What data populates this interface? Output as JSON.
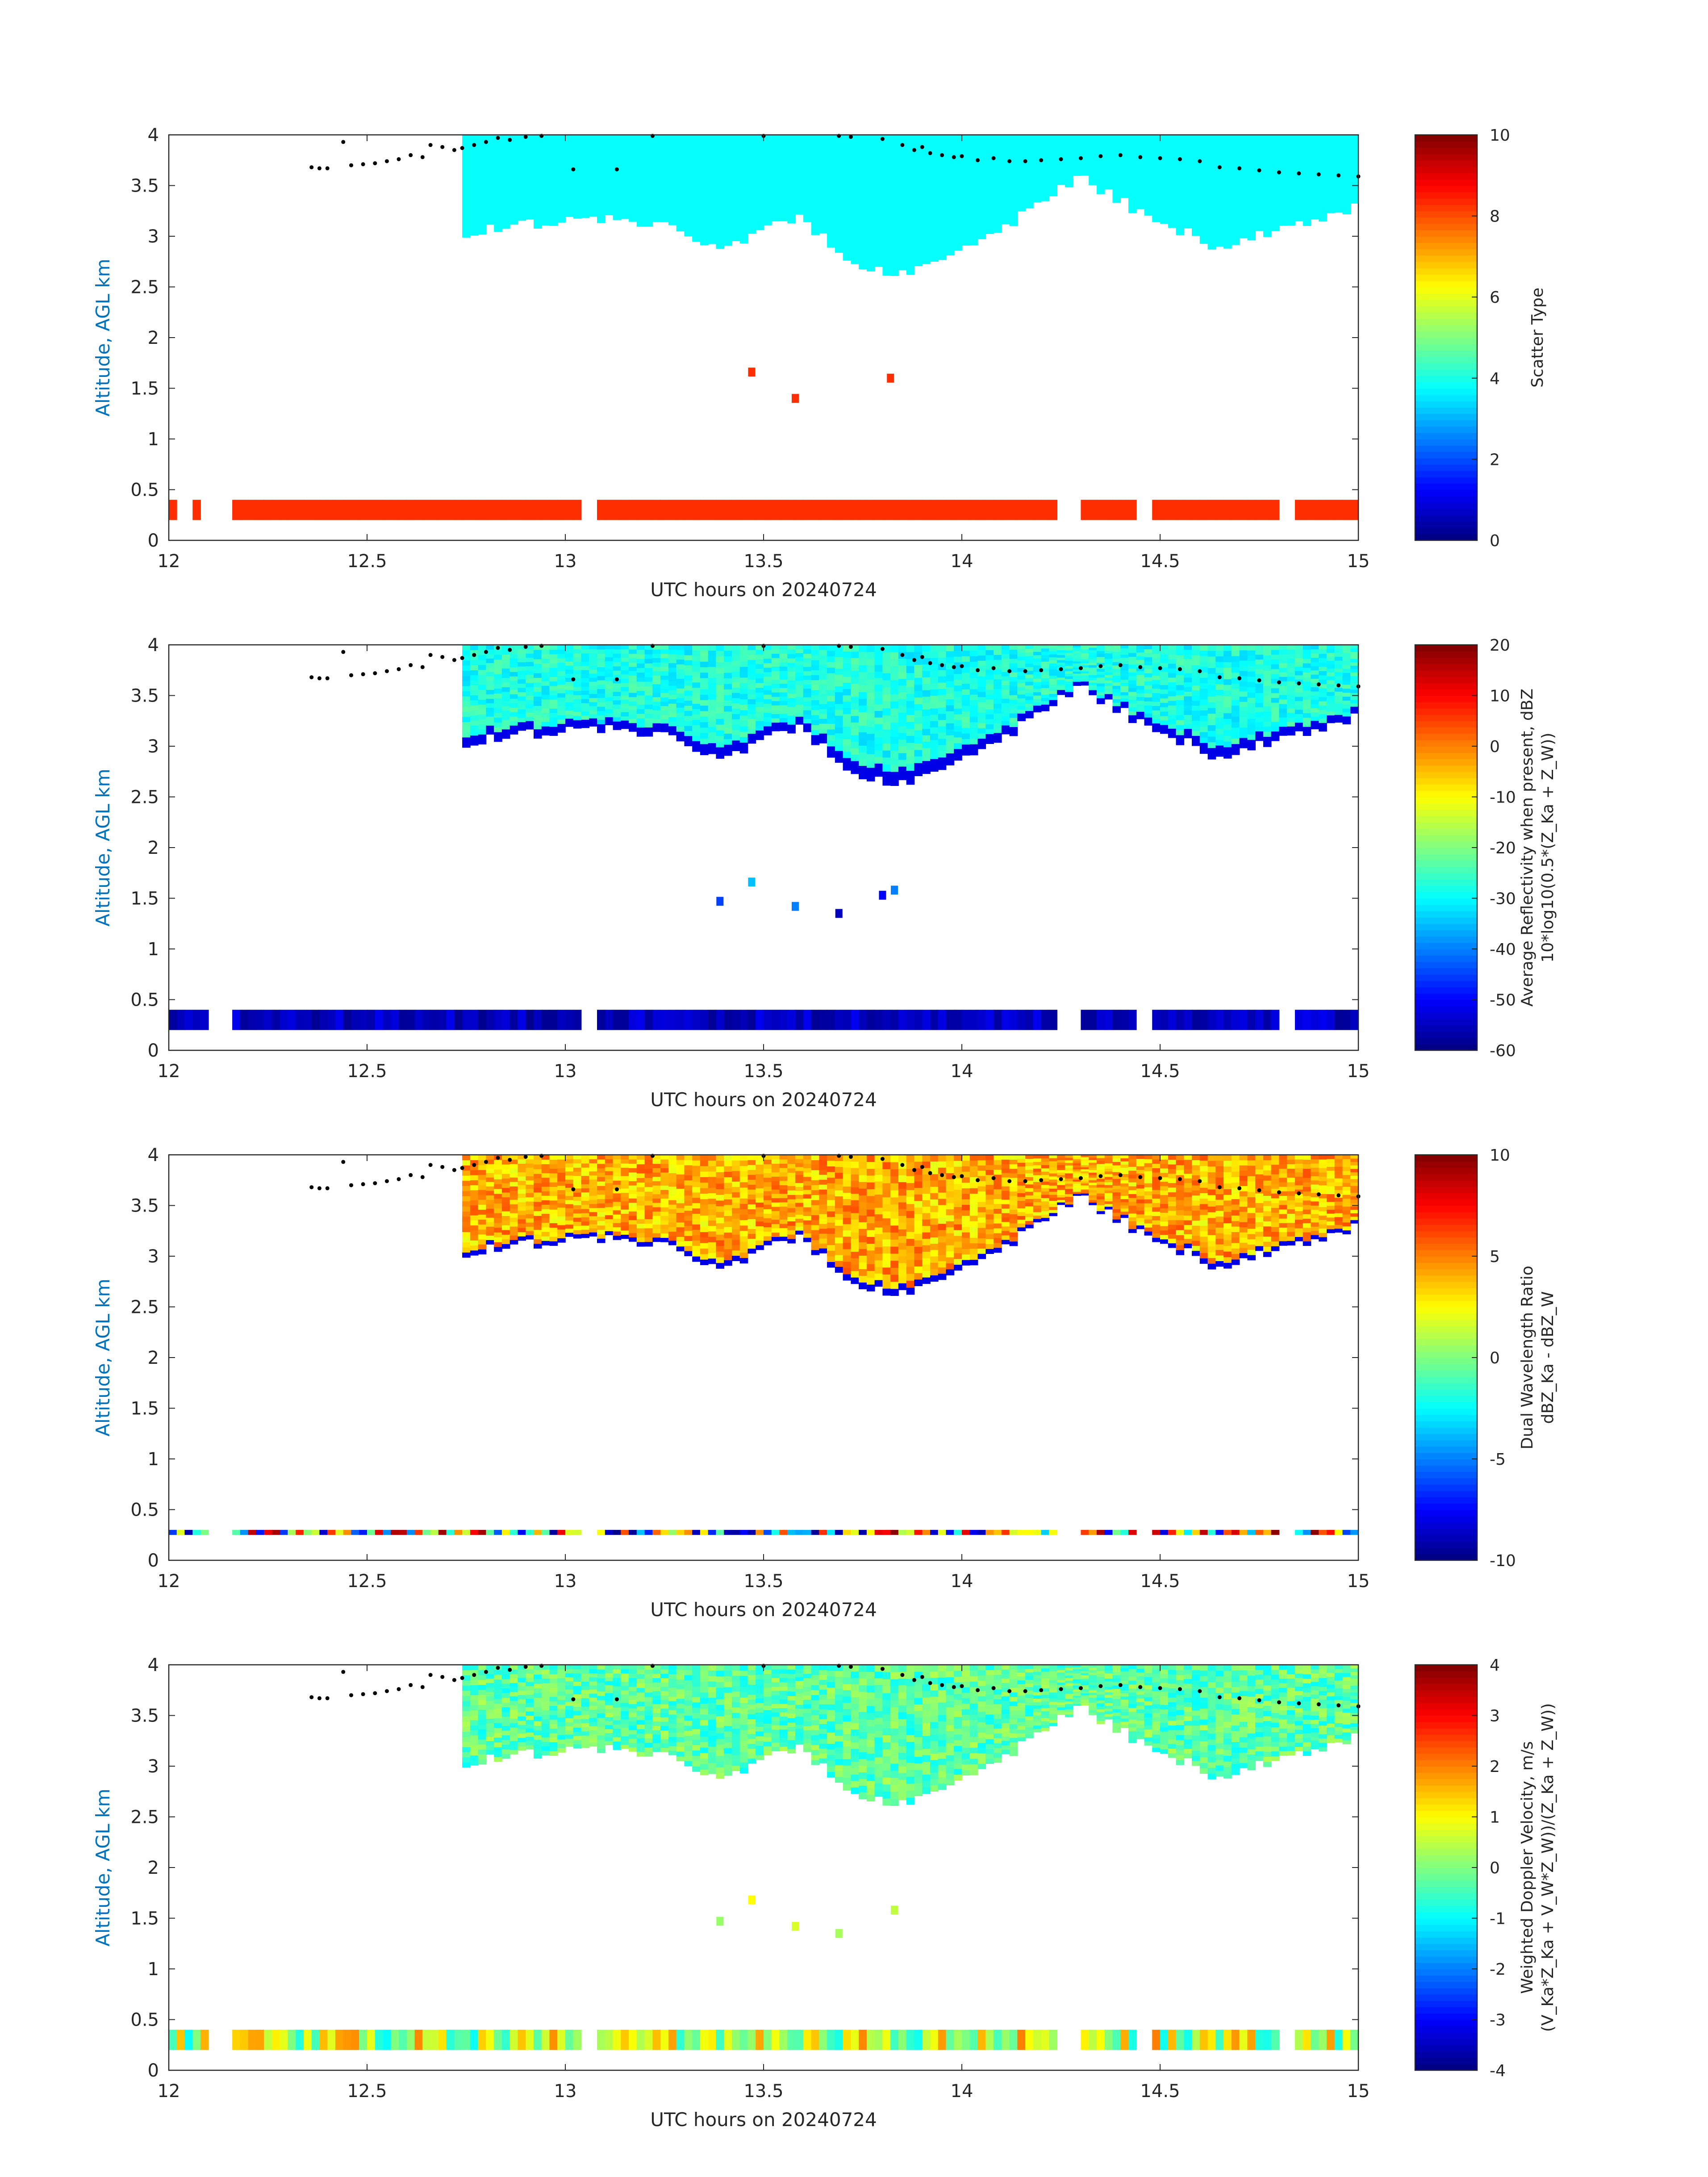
{
  "chart_data": [
    {
      "type": "heatmap",
      "panel": "scatter-type",
      "xlabel": "UTC hours on 20240724",
      "ylabel": "Altitude, AGL km",
      "xlim": [
        12,
        15
      ],
      "ylim": [
        0,
        4
      ],
      "xticks": [
        "12",
        "12.5",
        "13",
        "13.5",
        "14",
        "14.5",
        "15"
      ],
      "yticks": [
        "0",
        "0.5",
        "1",
        "1.5",
        "2",
        "2.5",
        "3",
        "3.5",
        "4"
      ],
      "colorbar": {
        "label_lines": [
          "Scatter Type"
        ],
        "range": [
          0,
          10
        ],
        "ticks": [
          "0",
          "2",
          "4",
          "6",
          "8",
          "10"
        ]
      },
      "cloud_layer": {
        "value": 3.8,
        "base_km": [
          3.6,
          3.6,
          3.6,
          3.2,
          3.0,
          3.1,
          3.2,
          3.1,
          2.9,
          3.2,
          2.65,
          2.7,
          3.1,
          3.6,
          3.2,
          2.9,
          3.1,
          3.3
        ]
      },
      "surface_layer": {
        "value": 8.3,
        "base_km": 0.2,
        "top_km": 0.4,
        "gaps_hours": [
          [
            12.1,
            12.15
          ],
          [
            13.05,
            13.07
          ],
          [
            14.25,
            14.3
          ],
          [
            14.45,
            14.48
          ],
          [
            14.8,
            14.83
          ]
        ]
      },
      "isolated_echoes": [
        {
          "x": 13.47,
          "y": 1.66,
          "value": 8.3
        },
        {
          "x": 13.58,
          "y": 1.4,
          "value": 8.3
        },
        {
          "x": 13.82,
          "y": 1.6,
          "value": 8.3
        }
      ]
    },
    {
      "type": "heatmap",
      "panel": "reflectivity",
      "xlabel": "UTC hours on 20240724",
      "ylabel": "Altitude, AGL km",
      "xlim": [
        12,
        15
      ],
      "ylim": [
        0,
        4
      ],
      "xticks": [
        "12",
        "12.5",
        "13",
        "13.5",
        "14",
        "14.5",
        "15"
      ],
      "yticks": [
        "0",
        "0.5",
        "1",
        "1.5",
        "2",
        "2.5",
        "3",
        "3.5",
        "4"
      ],
      "colorbar": {
        "label_lines": [
          "Average Reflectivity when present, dBZ",
          "10*log10(0.5*(Z_Ka + Z_W))"
        ],
        "range": [
          -60,
          20
        ],
        "ticks": [
          "-60",
          "-50",
          "-40",
          "-30",
          "-20",
          "-10",
          "0",
          "10",
          "20"
        ]
      },
      "cloud_interior_dbz": -28,
      "cloud_edge_dbz": -52,
      "surface_layer_dbz": -55,
      "isolated_echoes": [
        {
          "x": 13.39,
          "y": 1.47,
          "value": -45
        },
        {
          "x": 13.47,
          "y": 1.66,
          "value": -35
        },
        {
          "x": 13.58,
          "y": 1.42,
          "value": -40
        },
        {
          "x": 13.69,
          "y": 1.35,
          "value": -55
        },
        {
          "x": 13.8,
          "y": 1.53,
          "value": -50
        },
        {
          "x": 13.83,
          "y": 1.58,
          "value": -40
        }
      ]
    },
    {
      "type": "heatmap",
      "panel": "dual-wavelength-ratio",
      "xlabel": "UTC hours on 20240724",
      "ylabel": "Altitude, AGL km",
      "xlim": [
        12,
        15
      ],
      "ylim": [
        0,
        4
      ],
      "xticks": [
        "12",
        "12.5",
        "13",
        "13.5",
        "14",
        "14.5",
        "15"
      ],
      "yticks": [
        "0",
        "0.5",
        "1",
        "1.5",
        "2",
        "2.5",
        "3",
        "3.5",
        "4"
      ],
      "colorbar": {
        "label_lines": [
          "Dual Wavelength Ratio",
          "dBZ_Ka - dBZ_W"
        ],
        "range": [
          -10,
          10
        ],
        "ticks": [
          "-10",
          "-5",
          "0",
          "5",
          "10"
        ]
      },
      "cloud_interior_db": 4,
      "surface_layer_db": 0
    },
    {
      "type": "heatmap",
      "panel": "doppler-velocity",
      "xlabel": "UTC hours on 20240724",
      "ylabel": "Altitude, AGL km",
      "xlim": [
        12,
        15
      ],
      "ylim": [
        0,
        4
      ],
      "xticks": [
        "12",
        "12.5",
        "13",
        "13.5",
        "14",
        "14.5",
        "15"
      ],
      "yticks": [
        "0",
        "0.5",
        "1",
        "1.5",
        "2",
        "2.5",
        "3",
        "3.5",
        "4"
      ],
      "colorbar": {
        "label_lines": [
          "Weighted Doppler Velocity, m/s",
          "(V_Ka*Z_Ka + V_W*Z_W))/(Z_Ka + Z_W))"
        ],
        "range": [
          -4,
          4
        ],
        "ticks": [
          "-4",
          "-3",
          "-2",
          "-1",
          "0",
          "1",
          "2",
          "3",
          "4"
        ]
      },
      "cloud_interior_ms": -0.3,
      "surface_layer_ms": 0.5,
      "isolated_echoes": [
        {
          "x": 13.39,
          "y": 1.47,
          "value": 0.2
        },
        {
          "x": 13.47,
          "y": 1.68,
          "value": 1.0
        },
        {
          "x": 13.58,
          "y": 1.42,
          "value": 0.7
        },
        {
          "x": 13.69,
          "y": 1.35,
          "value": 0.3
        },
        {
          "x": 13.83,
          "y": 1.58,
          "value": 0.5
        }
      ]
    }
  ],
  "cloud_top_dots": {
    "color": "#000000",
    "x": [
      12.36,
      12.38,
      12.4,
      12.44,
      12.46,
      12.49,
      12.52,
      12.55,
      12.58,
      12.61,
      12.64,
      12.66,
      12.69,
      12.72,
      12.74,
      12.77,
      12.8,
      12.83,
      12.86,
      12.9,
      12.94,
      13.22,
      13.5,
      13.69,
      13.72,
      13.8,
      13.85,
      13.88,
      13.9,
      13.92,
      13.95,
      13.98,
      14.0,
      14.04,
      14.08,
      14.12,
      14.16,
      14.2,
      14.25,
      14.3,
      14.35,
      14.4,
      14.45,
      14.5,
      14.55,
      14.6,
      14.65,
      14.7,
      14.75,
      14.8,
      14.85,
      14.9,
      14.95,
      15.0,
      13.02,
      13.13
    ],
    "y": [
      3.68,
      3.67,
      3.67,
      3.93,
      3.7,
      3.71,
      3.72,
      3.74,
      3.76,
      3.8,
      3.78,
      3.9,
      3.88,
      3.85,
      3.87,
      3.9,
      3.93,
      3.97,
      3.95,
      3.98,
      3.99,
      3.99,
      3.99,
      3.99,
      3.98,
      3.96,
      3.9,
      3.85,
      3.88,
      3.82,
      3.8,
      3.78,
      3.79,
      3.75,
      3.77,
      3.74,
      3.74,
      3.75,
      3.76,
      3.77,
      3.79,
      3.8,
      3.78,
      3.77,
      3.76,
      3.74,
      3.68,
      3.67,
      3.65,
      3.63,
      3.62,
      3.61,
      3.6,
      3.59,
      3.66,
      3.66
    ]
  }
}
